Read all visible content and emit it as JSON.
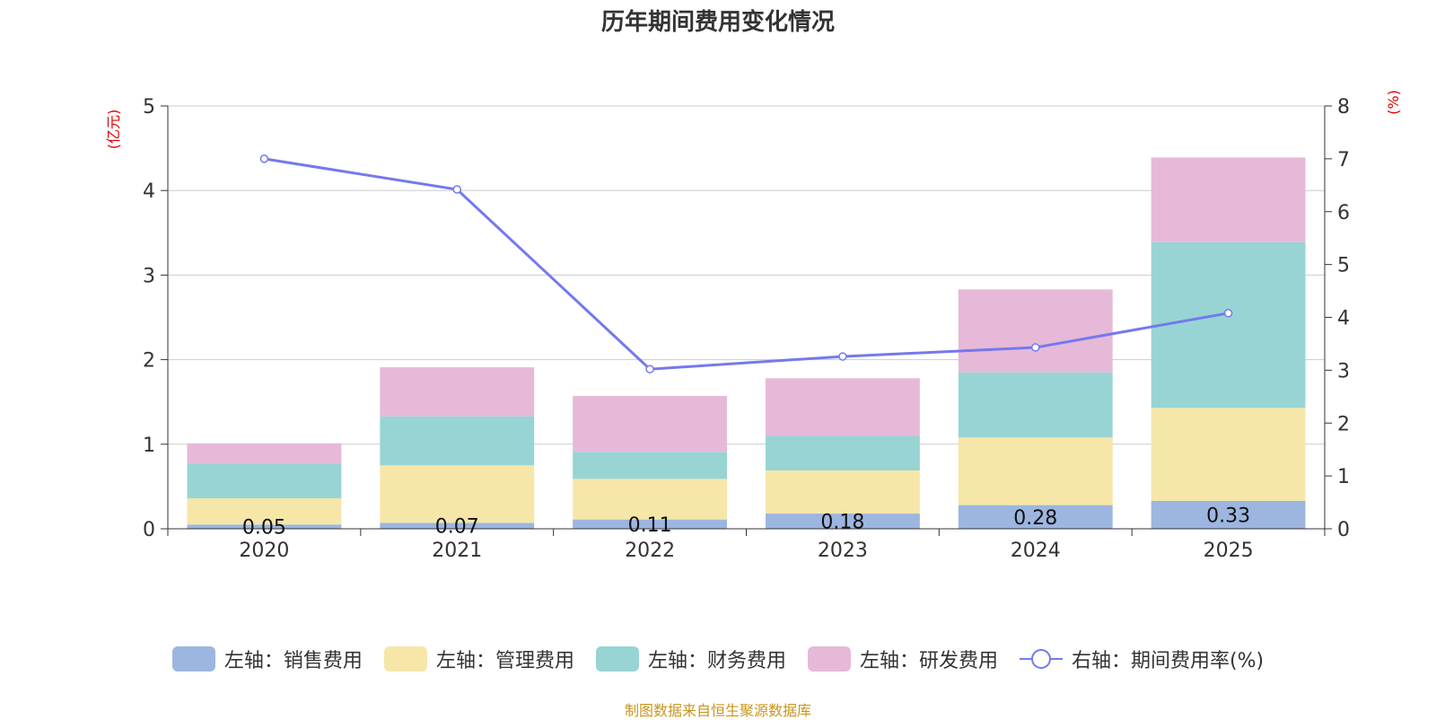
{
  "chart_data": {
    "type": "bar",
    "title": "历年期间费用变化情况",
    "categories": [
      "2020",
      "2021",
      "2022",
      "2023",
      "2024",
      "2025"
    ],
    "left_axis": {
      "label": "(亿元)",
      "min": 0,
      "max": 5,
      "ticks": [
        0,
        1,
        2,
        3,
        4,
        5
      ]
    },
    "right_axis": {
      "label": "(%)",
      "min": 0,
      "max": 8,
      "ticks": [
        0,
        1,
        2,
        3,
        4,
        5,
        6,
        7,
        8
      ]
    },
    "grid": true,
    "series": [
      {
        "name": "左轴：销售费用",
        "stack": true,
        "color": "#9db6e0",
        "values": [
          0.05,
          0.07,
          0.11,
          0.18,
          0.28,
          0.33
        ],
        "labels": [
          "0.05",
          "0.07",
          "0.11",
          "0.18",
          "0.28",
          "0.33"
        ]
      },
      {
        "name": "左轴：管理费用",
        "stack": true,
        "color": "#f6e6a8",
        "values": [
          0.31,
          0.68,
          0.48,
          0.51,
          0.8,
          1.1
        ]
      },
      {
        "name": "左轴：财务费用",
        "stack": true,
        "color": "#98d4d4",
        "values": [
          0.41,
          0.58,
          0.32,
          0.41,
          0.77,
          1.96
        ]
      },
      {
        "name": "左轴：研发费用",
        "stack": true,
        "color": "#e6b9d8",
        "values": [
          0.24,
          0.58,
          0.66,
          0.68,
          0.98,
          1.0
        ]
      },
      {
        "name": "右轴：期间费用率(%)",
        "type": "line",
        "axis": "right",
        "color": "#7479ee",
        "values": [
          7.0,
          6.42,
          3.02,
          3.26,
          3.43,
          4.08
        ]
      }
    ],
    "legend_position": "bottom",
    "source": "制图数据来自恒生聚源数据库"
  }
}
